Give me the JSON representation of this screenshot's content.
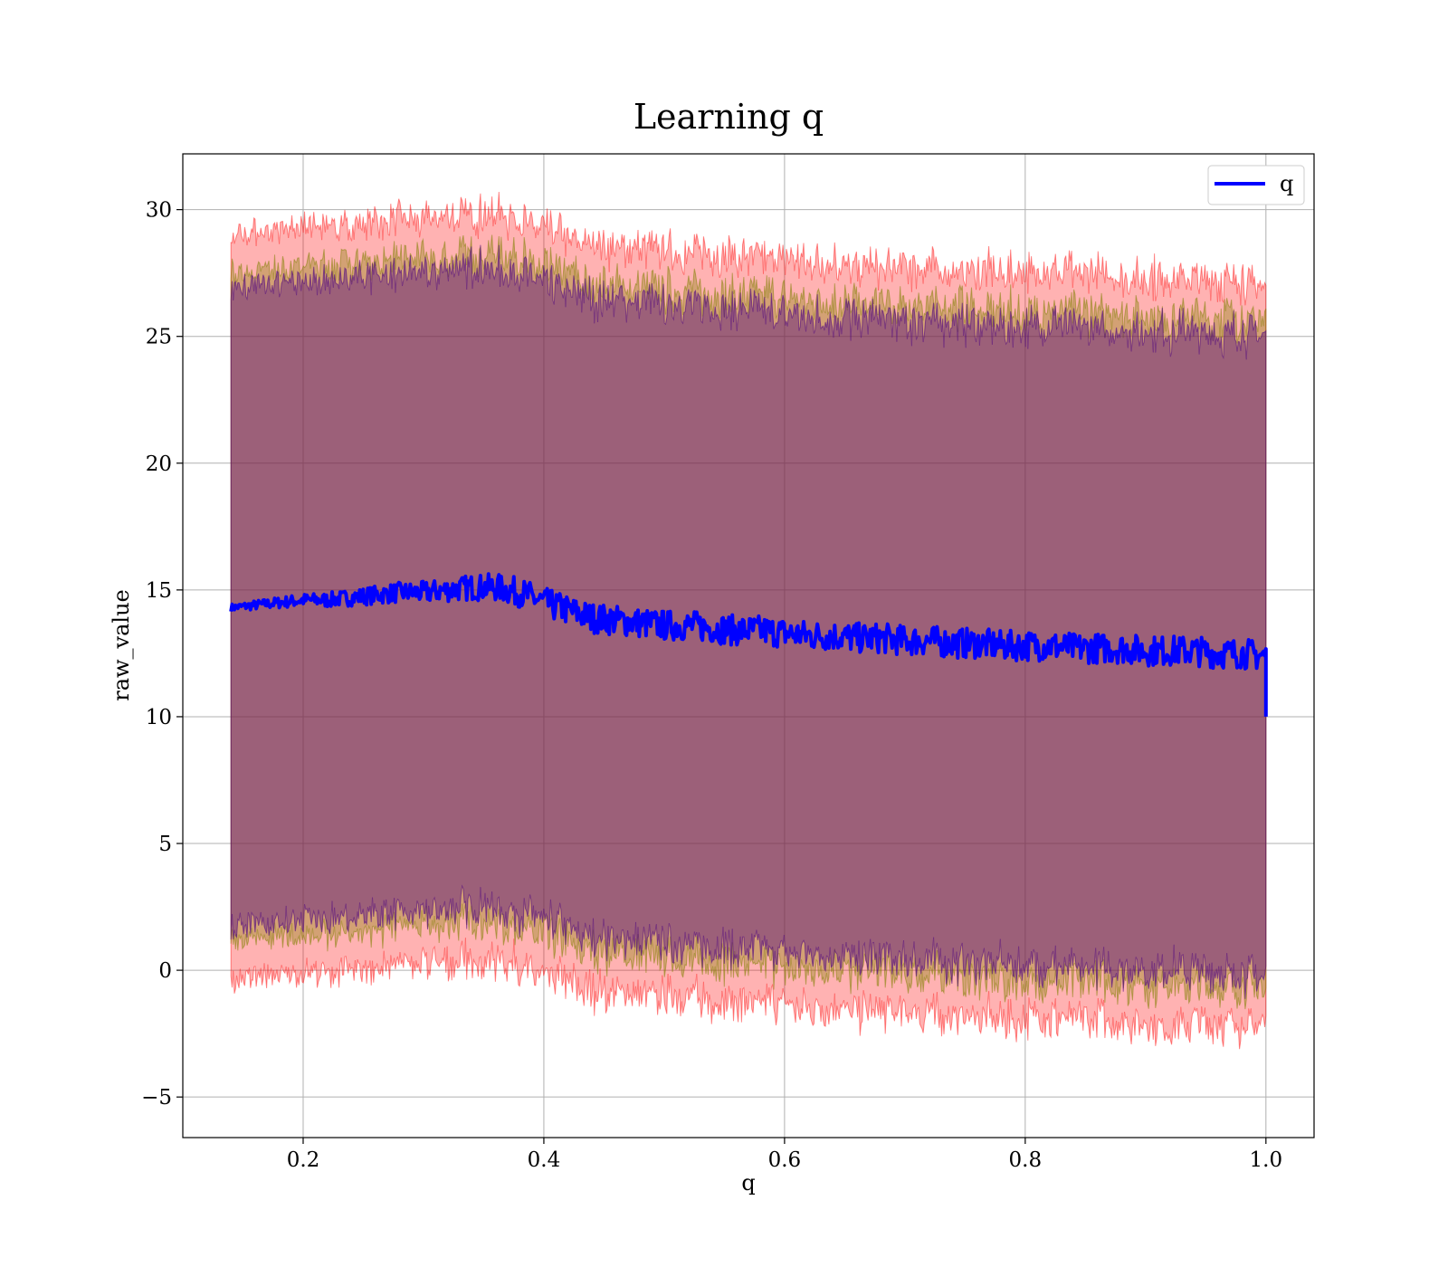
{
  "chart_data": {
    "type": "line",
    "title": "Learning q",
    "xlabel": "q",
    "ylabel": "raw_value",
    "xlim": [
      0.1,
      1.04
    ],
    "ylim": [
      -6.6,
      32.2
    ],
    "xticks": [
      0.2,
      0.4,
      0.6,
      0.8,
      1.0
    ],
    "xtick_labels": [
      "0.2",
      "0.4",
      "0.6",
      "0.8",
      "1.0"
    ],
    "yticks": [
      -5,
      0,
      5,
      10,
      15,
      20,
      25,
      30
    ],
    "ytick_labels": [
      "−5",
      "0",
      "5",
      "10",
      "15",
      "20",
      "25",
      "30"
    ],
    "grid": true,
    "legend": {
      "position": "top-right",
      "entries": [
        "q"
      ]
    },
    "series": [
      {
        "name": "q",
        "color": "#0000ff",
        "x": [
          0.14,
          0.16,
          0.18,
          0.2,
          0.22,
          0.24,
          0.26,
          0.28,
          0.3,
          0.32,
          0.34,
          0.36,
          0.38,
          0.4,
          0.42,
          0.44,
          0.46,
          0.48,
          0.5,
          0.52,
          0.54,
          0.56,
          0.58,
          0.6,
          0.62,
          0.64,
          0.66,
          0.68,
          0.7,
          0.72,
          0.74,
          0.76,
          0.78,
          0.8,
          0.82,
          0.84,
          0.86,
          0.88,
          0.9,
          0.92,
          0.94,
          0.96,
          0.98,
          1.0
        ],
        "y": [
          14.3,
          14.4,
          14.5,
          14.6,
          14.6,
          14.7,
          14.8,
          14.9,
          14.9,
          15.0,
          15.1,
          15.1,
          14.9,
          14.5,
          14.2,
          13.9,
          13.8,
          13.7,
          13.6,
          13.6,
          13.5,
          13.4,
          13.4,
          13.3,
          13.2,
          13.2,
          13.1,
          13.1,
          13.0,
          13.0,
          12.9,
          12.9,
          12.8,
          12.8,
          12.8,
          12.7,
          12.7,
          12.7,
          12.6,
          12.6,
          12.6,
          12.5,
          12.5,
          12.4
        ],
        "end_drop": 10.0,
        "bands": [
          {
            "fill": "#ff0000",
            "opacity": 0.3,
            "half_width": 14.7
          },
          {
            "fill": "#808000",
            "opacity": 0.35,
            "half_width": 13.2
          },
          {
            "fill": "#4b0082",
            "opacity": 0.4,
            "half_width": 12.6
          }
        ]
      }
    ]
  }
}
